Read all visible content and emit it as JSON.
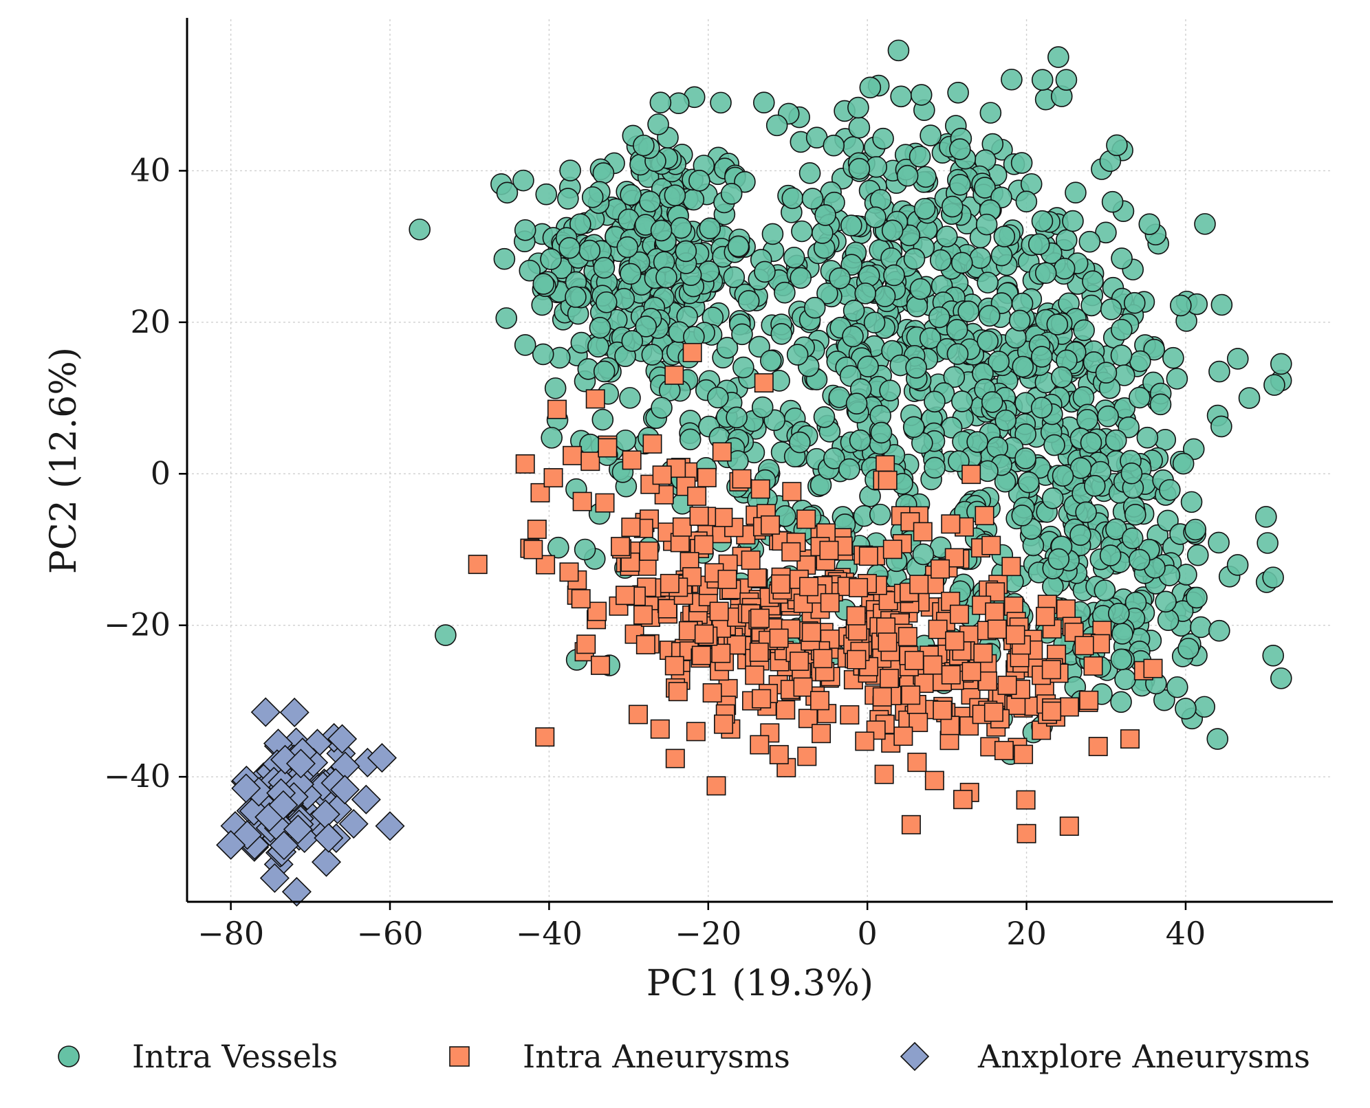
{
  "chart_data": {
    "type": "scatter",
    "title": "",
    "xlabel": "PC1 (19.3%)",
    "ylabel": "PC2 (12.6%)",
    "xlim": [
      -85.5,
      58.5
    ],
    "ylim": [
      -56.5,
      60
    ],
    "xticks": [
      -80,
      -60,
      -40,
      -20,
      0,
      20,
      40
    ],
    "yticks": [
      -40,
      -20,
      0,
      20,
      40
    ],
    "xtick_labels": [
      "−80",
      "−60",
      "−40",
      "−20",
      "0",
      "20",
      "40"
    ],
    "ytick_labels": [
      "−40",
      "−20",
      "0",
      "20",
      "40"
    ],
    "grid": true,
    "legend_position": "bottom",
    "series": [
      {
        "name": "Intra Vessels",
        "marker": "circle",
        "color": "#66c2a5",
        "n_points": 1400,
        "clusters": [
          {
            "center": [
              -28,
              28
            ],
            "spread": [
              7,
              9
            ],
            "weight": 0.22
          },
          {
            "center": [
              5,
              28
            ],
            "spread": [
              9,
              11
            ],
            "weight": 0.2
          },
          {
            "center": [
              22,
              14
            ],
            "spread": [
              10,
              12
            ],
            "weight": 0.2
          },
          {
            "center": [
              28,
              -12
            ],
            "spread": [
              10,
              10
            ],
            "weight": 0.2
          },
          {
            "center": [
              -8,
              4
            ],
            "spread": [
              14,
              12
            ],
            "weight": 0.18
          }
        ],
        "outliers": [
          [
            24,
            55
          ],
          [
            22,
            52
          ],
          [
            25,
            52
          ],
          [
            -13,
            49
          ],
          [
            -26,
            49
          ],
          [
            52,
            14.5
          ],
          [
            48,
            10
          ],
          [
            44,
            -35
          ],
          [
            52,
            -27
          ],
          [
            51,
            -24
          ],
          [
            40,
            -31
          ],
          [
            18,
            -37
          ],
          [
            -43,
            17
          ]
        ]
      },
      {
        "name": "Intra Aneurysms",
        "marker": "square",
        "color": "#fc8d62",
        "n_points": 520,
        "clusters": [
          {
            "center": [
              -5,
              -20
            ],
            "spread": [
              12,
              8
            ],
            "weight": 0.6
          },
          {
            "center": [
              -25,
              -10
            ],
            "spread": [
              8,
              8
            ],
            "weight": 0.2
          },
          {
            "center": [
              15,
              -28
            ],
            "spread": [
              8,
              7
            ],
            "weight": 0.2
          }
        ],
        "outliers": [
          [
            -43,
            1.3
          ],
          [
            -39,
            8.5
          ],
          [
            -22,
            16
          ],
          [
            -13,
            12
          ],
          [
            20,
            -47.5
          ],
          [
            12,
            -43
          ],
          [
            -36,
            -16.5
          ],
          [
            -42,
            -10
          ],
          [
            33,
            -35
          ],
          [
            29,
            -36
          ]
        ]
      },
      {
        "name": "Anxplore Aneurysms",
        "marker": "diamond",
        "color": "#8da0cb",
        "n_points": 100,
        "clusters": [
          {
            "center": [
              -72,
              -43
            ],
            "spread": [
              3.2,
              4.2
            ],
            "weight": 1.0
          }
        ],
        "outliers": [
          [
            -60,
            -46.5
          ],
          [
            -61,
            -37.5
          ],
          [
            -63,
            -43
          ],
          [
            -66,
            -35
          ],
          [
            -72,
            -31.5
          ],
          [
            -80,
            -49
          ]
        ]
      }
    ]
  },
  "legend": {
    "items": [
      {
        "label": "Intra Vessels",
        "color": "#66c2a5",
        "marker": "circle"
      },
      {
        "label": "Intra Aneurysms",
        "color": "#fc8d62",
        "marker": "square"
      },
      {
        "label": "Anxplore Aneurysms",
        "color": "#8da0cb",
        "marker": "diamond"
      }
    ]
  }
}
